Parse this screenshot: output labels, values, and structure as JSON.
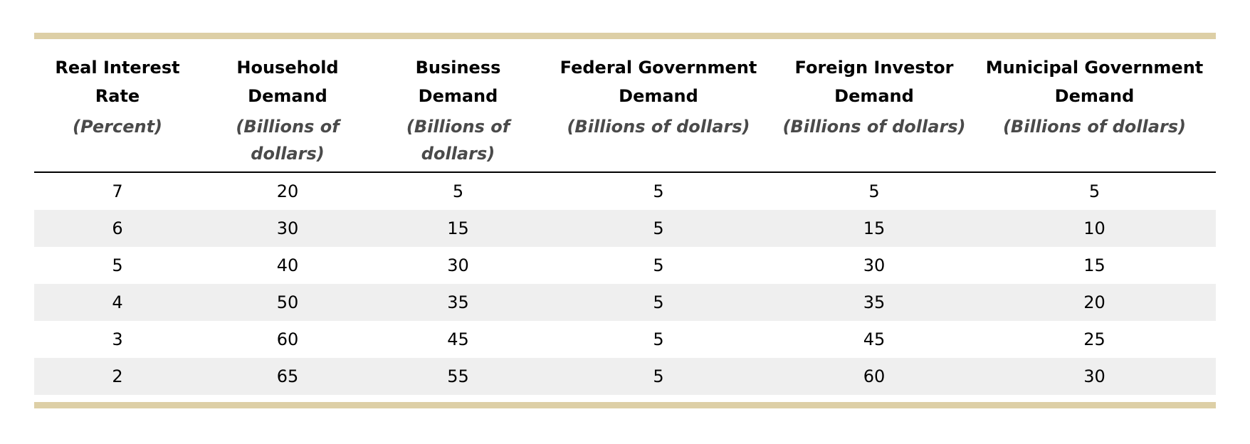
{
  "table": {
    "headers": [
      {
        "title": "Real Interest Rate",
        "unit": "(Percent)"
      },
      {
        "title": "Household Demand",
        "unit": "(Billions of dollars)"
      },
      {
        "title": "Business Demand",
        "unit": "(Billions of dollars)"
      },
      {
        "title": "Federal Government Demand",
        "unit": "(Billions of dollars)"
      },
      {
        "title": "Foreign Investor Demand",
        "unit": "(Billions of dollars)"
      },
      {
        "title": "Municipal Government Demand",
        "unit": "(Billions of dollars)"
      }
    ],
    "rows": [
      [
        "7",
        "20",
        "5",
        "5",
        "5",
        "5"
      ],
      [
        "6",
        "30",
        "15",
        "5",
        "15",
        "10"
      ],
      [
        "5",
        "40",
        "30",
        "5",
        "30",
        "15"
      ],
      [
        "4",
        "50",
        "35",
        "5",
        "35",
        "20"
      ],
      [
        "3",
        "60",
        "45",
        "5",
        "45",
        "25"
      ],
      [
        "2",
        "65",
        "55",
        "5",
        "60",
        "30"
      ]
    ],
    "colors": {
      "rule": "#ddcfa6",
      "alt_row": "#efefef",
      "unit_text": "#4a4a4a"
    }
  }
}
